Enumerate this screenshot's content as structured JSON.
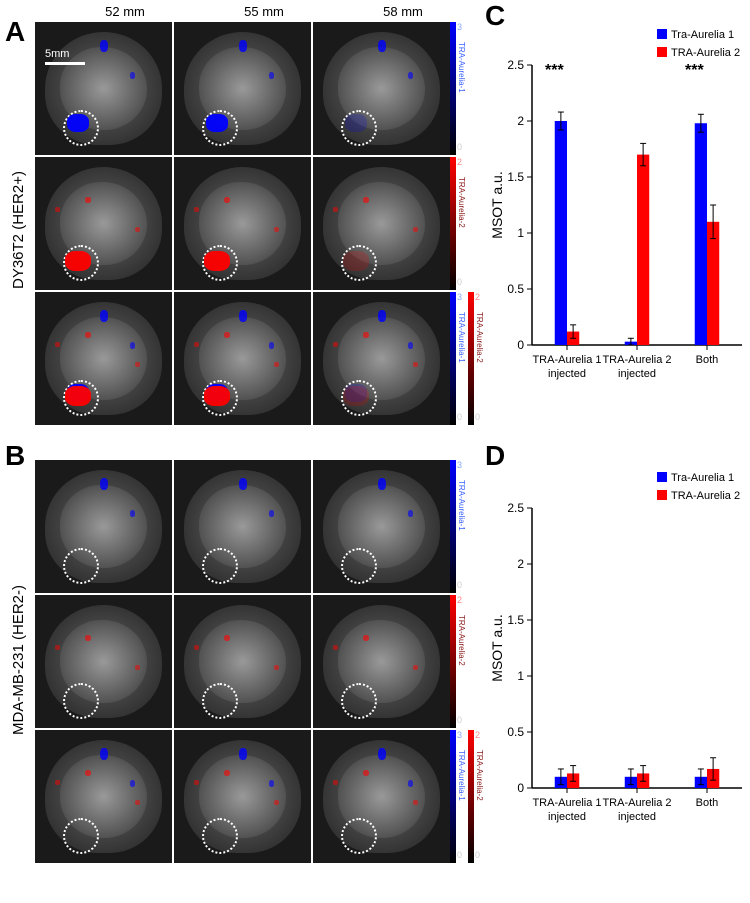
{
  "panel_labels": {
    "A": "A",
    "B": "B",
    "C": "C",
    "D": "D"
  },
  "col_headers": [
    "52 mm",
    "55 mm",
    "58 mm"
  ],
  "row_labels": {
    "A": "DY36T2 (HER2+)",
    "B": "MDA-MB-231 (HER2-)"
  },
  "scalebar": {
    "label": "5mm"
  },
  "colorbars": {
    "blue": {
      "max": "3",
      "min": "0",
      "label": "TRA-Aurelia-1",
      "color_text": "#3a5fff"
    },
    "red": {
      "max": "2",
      "min": "0",
      "label": "TRA-Aurelia-2",
      "color_text": "#8b1a1a"
    }
  },
  "chart_C": {
    "type": "bar",
    "ylabel": "MSOT a.u.",
    "ylim": [
      0,
      2.5
    ],
    "ytick_step": 0.5,
    "categories": [
      "TRA-Aurelia 1 injected",
      "TRA-Aurelia 2 injected",
      "Both"
    ],
    "series": [
      {
        "name": "Tra-Aurelia 1",
        "color": "#0000ff",
        "values": [
          2.0,
          0.03,
          1.98
        ],
        "errors": [
          0.08,
          0.03,
          0.08
        ]
      },
      {
        "name": "TRA-Aurelia 2",
        "color": "#ff0000",
        "values": [
          0.12,
          1.7,
          1.1
        ],
        "errors": [
          0.06,
          0.1,
          0.15
        ]
      }
    ],
    "sig_markers": [
      {
        "category_index": 0,
        "text": "***"
      },
      {
        "category_index": 2,
        "text": "***"
      }
    ],
    "bar_width": 0.35,
    "font_size": 12,
    "axis_color": "#000000",
    "background_color": "#ffffff"
  },
  "chart_D": {
    "type": "bar",
    "ylabel": "MSOT a.u.",
    "ylim": [
      0,
      2.5
    ],
    "ytick_step": 0.5,
    "categories": [
      "TRA-Aurelia 1 injected",
      "TRA-Aurelia 2 injected",
      "Both"
    ],
    "series": [
      {
        "name": "Tra-Aurelia 1",
        "color": "#0000ff",
        "values": [
          0.1,
          0.1,
          0.1
        ],
        "errors": [
          0.07,
          0.07,
          0.07
        ]
      },
      {
        "name": "TRA-Aurelia 2",
        "color": "#ff0000",
        "values": [
          0.13,
          0.13,
          0.17
        ],
        "errors": [
          0.07,
          0.07,
          0.1
        ]
      }
    ],
    "bar_width": 0.35,
    "font_size": 12,
    "axis_color": "#000000",
    "background_color": "#ffffff"
  },
  "imaging": {
    "groups": [
      {
        "id": "A",
        "rows": [
          {
            "signal": "blue",
            "colorbars": [
              "blue"
            ]
          },
          {
            "signal": "red",
            "colorbars": [
              "red"
            ]
          },
          {
            "signal": "both",
            "colorbars": [
              "blue",
              "red"
            ]
          }
        ],
        "tumor_signal_strong": true
      },
      {
        "id": "B",
        "rows": [
          {
            "signal": "blue",
            "colorbars": [
              "blue"
            ]
          },
          {
            "signal": "red",
            "colorbars": [
              "red"
            ]
          },
          {
            "signal": "both",
            "colorbars": [
              "blue",
              "red"
            ]
          }
        ],
        "tumor_signal_strong": false
      }
    ]
  }
}
